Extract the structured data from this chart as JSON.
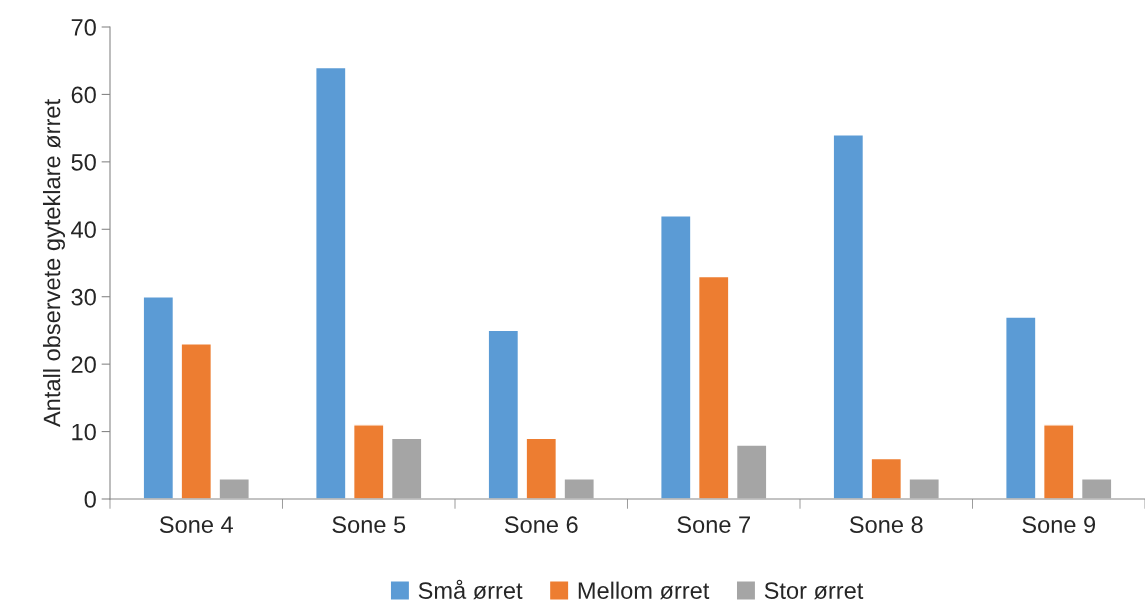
{
  "chart_data": {
    "type": "bar",
    "ylabel": "Antall observete gyteklare ørret",
    "categories": [
      "Sone 4",
      "Sone 5",
      "Sone 6",
      "Sone 7",
      "Sone 8",
      "Sone 9"
    ],
    "series": [
      {
        "name": "Små ørret",
        "color": "#5b9bd5",
        "values": [
          30,
          64,
          25,
          42,
          54,
          27
        ]
      },
      {
        "name": "Mellom ørret",
        "color": "#ed7d31",
        "values": [
          23,
          11,
          9,
          33,
          6,
          11
        ]
      },
      {
        "name": "Stor ørret",
        "color": "#a5a5a5",
        "values": [
          3,
          9,
          3,
          8,
          3,
          3
        ]
      }
    ],
    "ylim": [
      0,
      70
    ],
    "yticks": [
      0,
      10,
      20,
      30,
      40,
      50,
      60,
      70
    ],
    "grid": false,
    "legend": "bottom"
  }
}
